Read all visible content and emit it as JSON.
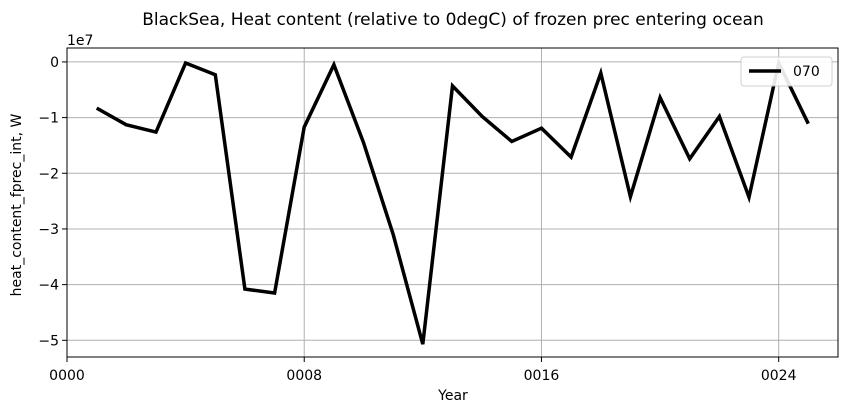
{
  "chart_data": {
    "type": "line",
    "title": "BlackSea, Heat content (relative to 0degC) of frozen prec entering ocean",
    "xlabel": "Year",
    "ylabel": "heat_content_fprec_int, W",
    "y_offset_label": "1e7",
    "xlim": [
      0,
      26
    ],
    "ylim": [
      -5.3,
      0.25
    ],
    "x_ticks": [
      0,
      8,
      16,
      24
    ],
    "x_tick_labels": [
      "0000",
      "0008",
      "0016",
      "0024"
    ],
    "y_ticks": [
      0,
      -1,
      -2,
      -3,
      -4,
      -5
    ],
    "y_tick_labels": [
      "0",
      "−1",
      "−2",
      "−3",
      "−4",
      "−5"
    ],
    "grid": true,
    "legend_position": "top-right",
    "series": [
      {
        "name": "070",
        "color": "#000000",
        "x": [
          1,
          2,
          3,
          4,
          5,
          6,
          7,
          8,
          9,
          10,
          11,
          12,
          13,
          14,
          15,
          16,
          17,
          18,
          19,
          20,
          21,
          22,
          23,
          24,
          25
        ],
        "values": [
          -0.83,
          -1.13,
          -1.26,
          -0.02,
          -0.23,
          -4.08,
          -4.15,
          -1.17,
          -0.05,
          -1.45,
          -3.1,
          -5.07,
          -0.43,
          -0.98,
          -1.43,
          -1.19,
          -1.71,
          -0.2,
          -2.42,
          -0.64,
          -1.74,
          -0.98,
          -2.43,
          -0.02,
          -1.11
        ]
      }
    ]
  }
}
